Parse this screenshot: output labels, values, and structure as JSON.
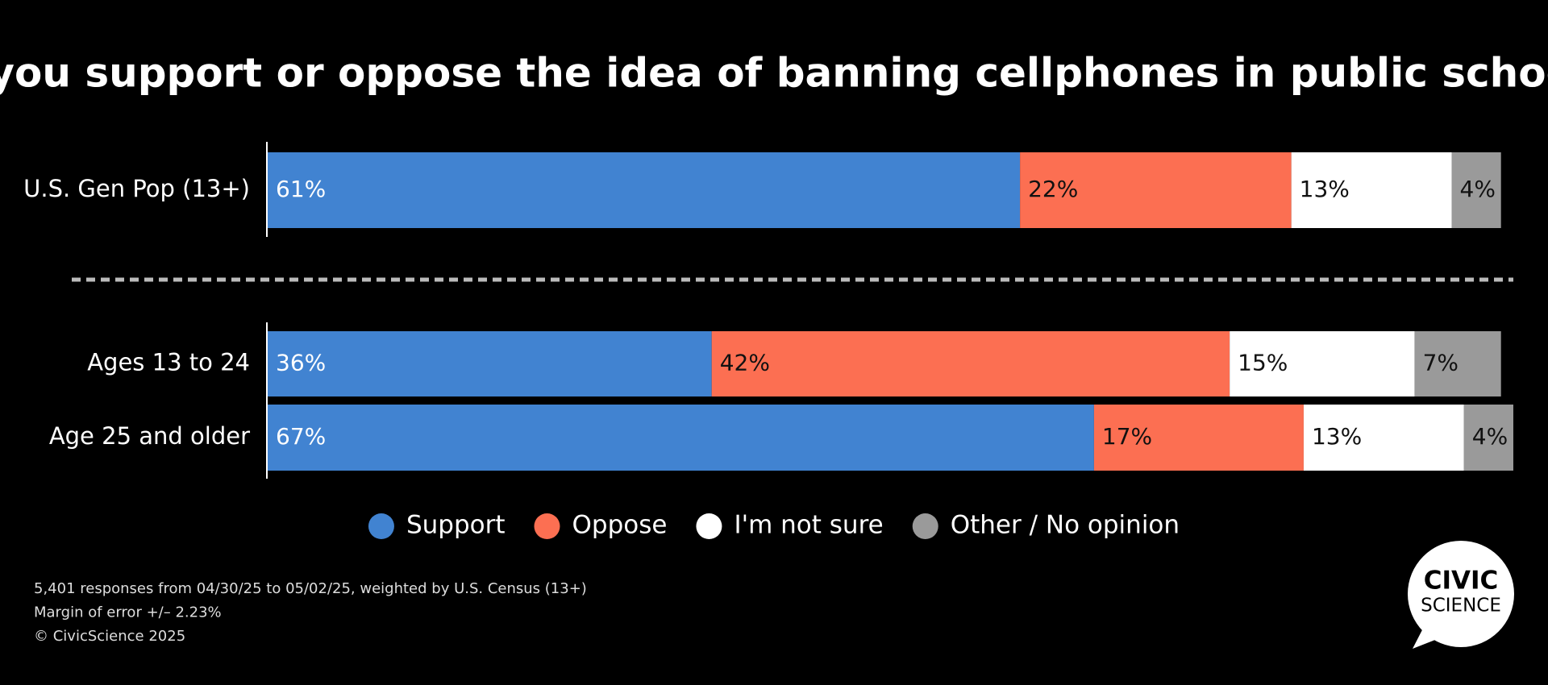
{
  "chart_data": {
    "type": "stacked-bar-horizontal",
    "title": "Do you support or oppose the idea of banning cellphones in public schools?",
    "categories": [
      "U.S. Gen Pop (13+)",
      "Ages 13 to 24",
      "Age 25 and older"
    ],
    "series": [
      {
        "name": "Support",
        "color": "#4183d1",
        "values": [
          61,
          36,
          67
        ],
        "value_labels": [
          "61%",
          "36%",
          "67%"
        ]
      },
      {
        "name": "Oppose",
        "color": "#fc6f52",
        "values": [
          22,
          42,
          17
        ],
        "value_labels": [
          "22%",
          "42%",
          "17%"
        ]
      },
      {
        "name": "I'm not sure",
        "color": "#ffffff",
        "values": [
          13,
          15,
          13
        ],
        "value_labels": [
          "13%",
          "15%",
          "13%"
        ]
      },
      {
        "name": "Other / No opinion",
        "color": "#9a9a9a",
        "values": [
          4,
          7,
          4
        ],
        "value_labels": [
          "4%",
          "7%",
          "4%"
        ]
      }
    ]
  },
  "footer": [
    "5,401 responses from 04/30/25 to 05/02/25, weighted by U.S. Census (13+)",
    "Margin of error +/– 2.23%",
    "© CivicScience 2025"
  ],
  "logo": [
    "CIVIC",
    "SCIENCE"
  ]
}
